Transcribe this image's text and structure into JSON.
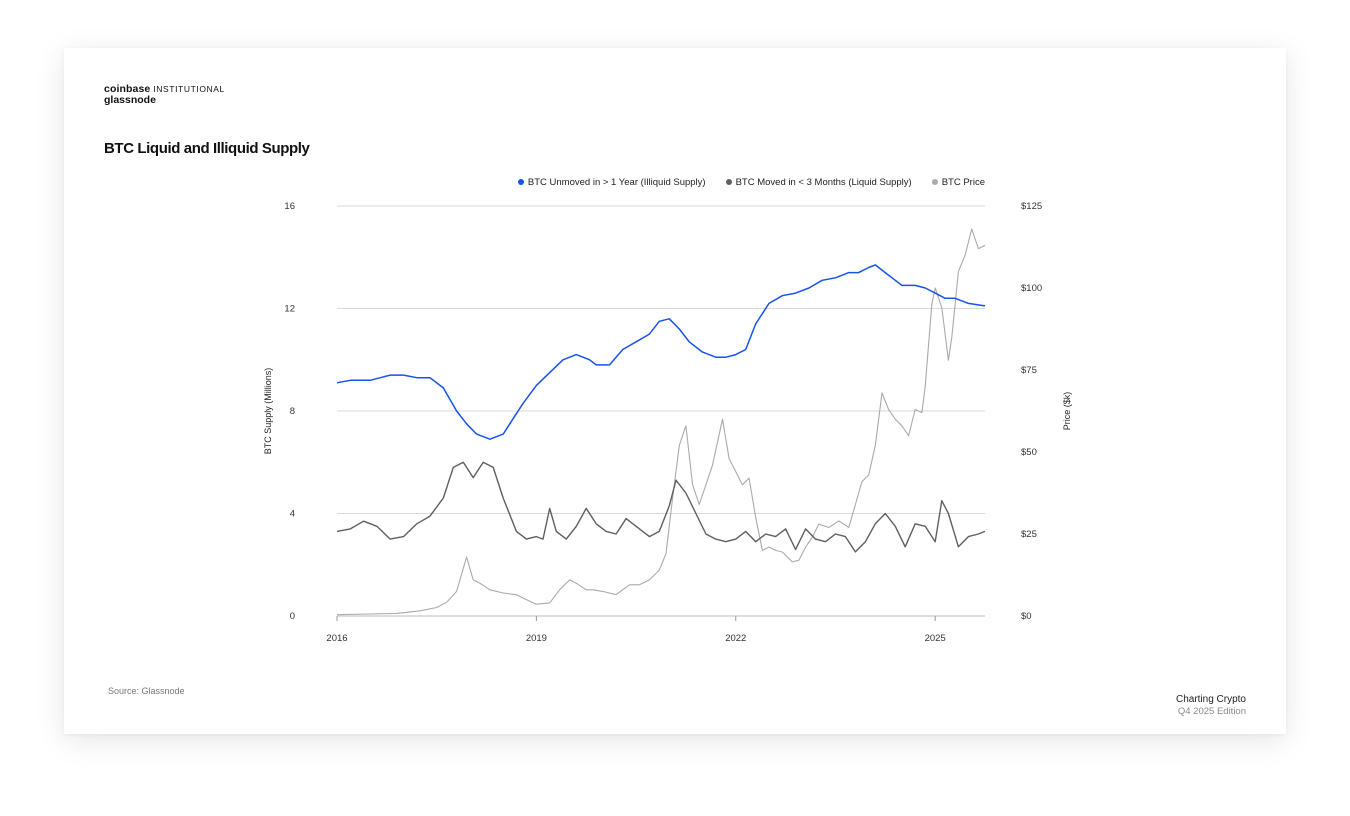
{
  "brand": {
    "name": "coinbase",
    "division": "INSTITUTIONAL",
    "partner": "glassnode"
  },
  "title": "BTC Liquid and Illiquid Supply",
  "source": "Source: Glassnode",
  "footer": {
    "line1": "Charting Crypto",
    "line2": "Q4 2025 Edition"
  },
  "colors": {
    "illiquid": "#1652f0",
    "liquid": "#5f5f5f",
    "price": "#aaaaaa",
    "grid": "#d9d9d9"
  },
  "chart_data": {
    "type": "line",
    "xlabel": "",
    "ylabel": "BTC Supply (Millions)",
    "y2label": "Price ($k)",
    "xlim": [
      2016.0,
      2025.75
    ],
    "ylim": [
      0,
      16
    ],
    "y2lim": [
      0,
      125
    ],
    "xticks": [
      2016,
      2019,
      2022,
      2025
    ],
    "xtick_labels": [
      "2016",
      "2019",
      "2022",
      "2025"
    ],
    "yticks": [
      0,
      4,
      8,
      12,
      16
    ],
    "ytick_labels": [
      "0",
      "4",
      "8",
      "12",
      "16"
    ],
    "y2ticks": [
      0,
      25,
      50,
      75,
      100,
      125
    ],
    "y2tick_labels": [
      "$0",
      "$25",
      "$50",
      "$75",
      "$100",
      "$125"
    ],
    "grid": true,
    "legend_position": "top-right",
    "series": [
      {
        "name": "BTC Unmoved in > 1 Year (Illiquid Supply)",
        "axis": "left",
        "x": [
          2016.0,
          2016.2,
          2016.5,
          2016.8,
          2017.0,
          2017.2,
          2017.4,
          2017.6,
          2017.8,
          2017.95,
          2018.1,
          2018.3,
          2018.5,
          2018.6,
          2018.8,
          2019.0,
          2019.2,
          2019.4,
          2019.6,
          2019.8,
          2019.9,
          2020.1,
          2020.3,
          2020.5,
          2020.7,
          2020.85,
          2021.0,
          2021.15,
          2021.3,
          2021.5,
          2021.7,
          2021.85,
          2022.0,
          2022.15,
          2022.3,
          2022.5,
          2022.7,
          2022.9,
          2023.1,
          2023.3,
          2023.5,
          2023.7,
          2023.85,
          2024.0,
          2024.1,
          2024.2,
          2024.35,
          2024.5,
          2024.7,
          2024.85,
          2025.0,
          2025.15,
          2025.3,
          2025.5,
          2025.75
        ],
        "y": [
          9.1,
          9.2,
          9.2,
          9.4,
          9.4,
          9.3,
          9.3,
          8.9,
          8.0,
          7.5,
          7.1,
          6.9,
          7.1,
          7.5,
          8.3,
          9.0,
          9.5,
          10.0,
          10.2,
          10.0,
          9.8,
          9.8,
          10.4,
          10.7,
          11.0,
          11.5,
          11.6,
          11.2,
          10.7,
          10.3,
          10.1,
          10.1,
          10.2,
          10.4,
          11.4,
          12.2,
          12.5,
          12.6,
          12.8,
          13.1,
          13.2,
          13.4,
          13.4,
          13.6,
          13.7,
          13.5,
          13.2,
          12.9,
          12.9,
          12.8,
          12.6,
          12.4,
          12.4,
          12.2,
          12.1
        ]
      },
      {
        "name": "BTC Moved in < 3 Months (Liquid Supply)",
        "axis": "left",
        "x": [
          2016.0,
          2016.2,
          2016.4,
          2016.6,
          2016.8,
          2017.0,
          2017.2,
          2017.4,
          2017.6,
          2017.75,
          2017.9,
          2018.05,
          2018.2,
          2018.35,
          2018.5,
          2018.7,
          2018.85,
          2019.0,
          2019.1,
          2019.2,
          2019.3,
          2019.45,
          2019.6,
          2019.75,
          2019.9,
          2020.05,
          2020.2,
          2020.35,
          2020.5,
          2020.7,
          2020.85,
          2021.0,
          2021.1,
          2021.25,
          2021.4,
          2021.55,
          2021.7,
          2021.85,
          2022.0,
          2022.15,
          2022.3,
          2022.45,
          2022.6,
          2022.75,
          2022.9,
          2023.05,
          2023.2,
          2023.35,
          2023.5,
          2023.65,
          2023.8,
          2023.95,
          2024.1,
          2024.25,
          2024.4,
          2024.55,
          2024.7,
          2024.85,
          2025.0,
          2025.1,
          2025.2,
          2025.35,
          2025.5,
          2025.65,
          2025.75
        ],
        "y": [
          3.3,
          3.4,
          3.7,
          3.5,
          3.0,
          3.1,
          3.6,
          3.9,
          4.6,
          5.8,
          6.0,
          5.4,
          6.0,
          5.8,
          4.6,
          3.3,
          3.0,
          3.1,
          3.0,
          4.2,
          3.3,
          3.0,
          3.5,
          4.2,
          3.6,
          3.3,
          3.2,
          3.8,
          3.5,
          3.1,
          3.3,
          4.3,
          5.3,
          4.8,
          4.0,
          3.2,
          3.0,
          2.9,
          3.0,
          3.3,
          2.9,
          3.2,
          3.1,
          3.4,
          2.6,
          3.4,
          3.0,
          2.9,
          3.2,
          3.1,
          2.5,
          2.9,
          3.6,
          4.0,
          3.5,
          2.7,
          3.6,
          3.5,
          2.9,
          4.5,
          4.0,
          2.7,
          3.1,
          3.2,
          3.3
        ]
      },
      {
        "name": "BTC Price",
        "axis": "right",
        "x": [
          2016.0,
          2016.5,
          2016.9,
          2017.0,
          2017.25,
          2017.5,
          2017.65,
          2017.8,
          2017.95,
          2018.05,
          2018.15,
          2018.3,
          2018.5,
          2018.7,
          2018.9,
          2019.0,
          2019.2,
          2019.35,
          2019.5,
          2019.6,
          2019.75,
          2019.85,
          2020.0,
          2020.2,
          2020.4,
          2020.55,
          2020.7,
          2020.85,
          2020.95,
          2021.05,
          2021.15,
          2021.25,
          2021.35,
          2021.45,
          2021.55,
          2021.65,
          2021.8,
          2021.9,
          2022.0,
          2022.1,
          2022.2,
          2022.3,
          2022.4,
          2022.5,
          2022.6,
          2022.7,
          2022.85,
          2022.95,
          2023.05,
          2023.15,
          2023.25,
          2023.4,
          2023.55,
          2023.7,
          2023.8,
          2023.9,
          2024.0,
          2024.1,
          2024.2,
          2024.3,
          2024.4,
          2024.5,
          2024.6,
          2024.7,
          2024.8,
          2024.85,
          2024.95,
          2025.0,
          2025.1,
          2025.2,
          2025.25,
          2025.35,
          2025.45,
          2025.55,
          2025.65,
          2025.75
        ],
        "y": [
          0.4,
          0.6,
          0.8,
          1.0,
          1.6,
          2.6,
          4.2,
          7.5,
          18.0,
          11.0,
          10.0,
          8.0,
          7.0,
          6.5,
          4.5,
          3.6,
          4.0,
          8.0,
          11.0,
          10.0,
          8.0,
          8.0,
          7.5,
          6.5,
          9.5,
          9.5,
          11.0,
          14.0,
          19.0,
          36.0,
          52.0,
          58.0,
          40.0,
          34.0,
          40.0,
          46.0,
          60.0,
          48.0,
          44.0,
          40.0,
          42.0,
          30.0,
          20.0,
          21.0,
          20.0,
          19.5,
          16.5,
          17.0,
          21.0,
          24.0,
          28.0,
          27.0,
          29.0,
          27.0,
          34.0,
          41.0,
          43.0,
          52.0,
          68.0,
          63.0,
          60.0,
          58.0,
          55.0,
          63.0,
          62.0,
          70.0,
          95.0,
          100.0,
          94.0,
          78.0,
          85.0,
          105.0,
          110.0,
          118.0,
          112.0,
          113.0
        ]
      }
    ]
  }
}
